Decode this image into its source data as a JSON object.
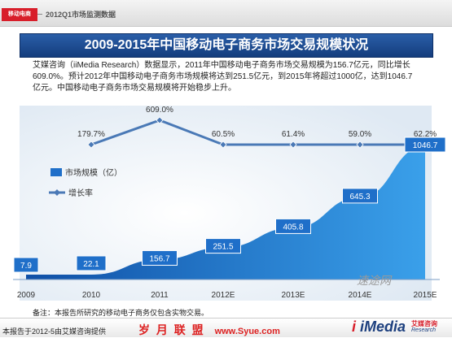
{
  "header": {
    "tag": "移动电商",
    "section": "2012Q1市场监测数据"
  },
  "title": "2009-2015年中国移动电子商务市场交易规模状况",
  "description": "艾媒咨询（iiMedia Research）数据显示，2011年中国移动电子商务市场交易规模为156.7亿元，同比增长609.0%。预计2012年中国移动电子商务市场规模将达到251.5亿元，到2015年将超过1000亿，达到1046.7亿元。中国移动电子商务市场交易规模将开始稳步上升。",
  "note": "备注：本报告所研究的移动电子商务仅包含实物交易。",
  "source": "本报告于2012-5由艾媒咨询提供",
  "watermark": {
    "left": "岁 月 联 盟",
    "url": "www.Syue.com",
    "site": "速途网",
    "logo_i": "i",
    "logo_media": "iMedia",
    "logo_cn": "艾媒咨询",
    "logo_en": "Research"
  },
  "colors": {
    "bar": "#1f6fc9",
    "area_light": "#5fb6ec",
    "line": "#4a79b6",
    "banner": "#1d4a92",
    "tag": "#d81e2a"
  },
  "chart_data": {
    "type": "area",
    "categories": [
      "2009",
      "2010",
      "2011",
      "2012E",
      "2013E",
      "2014E",
      "2015E"
    ],
    "series": [
      {
        "name": "市场规模（亿）",
        "values": [
          7.9,
          22.1,
          156.7,
          251.5,
          405.8,
          645.3,
          1046.7
        ],
        "labels": [
          "7.9",
          "22.1",
          "156.7",
          "251.5",
          "405.8",
          "645.3",
          "1046.7"
        ]
      },
      {
        "name": "增长率",
        "values": [
          179.7,
          609.0,
          60.5,
          61.4,
          59.0,
          62.2
        ],
        "x": [
          "2010",
          "2011",
          "2012E",
          "2013E",
          "2014E",
          "2015E"
        ],
        "labels": [
          "179.7%",
          "609.0%",
          "60.5%",
          "61.4%",
          "59.0%",
          "62.2%"
        ]
      }
    ],
    "legend_position": "left",
    "grid": false
  }
}
